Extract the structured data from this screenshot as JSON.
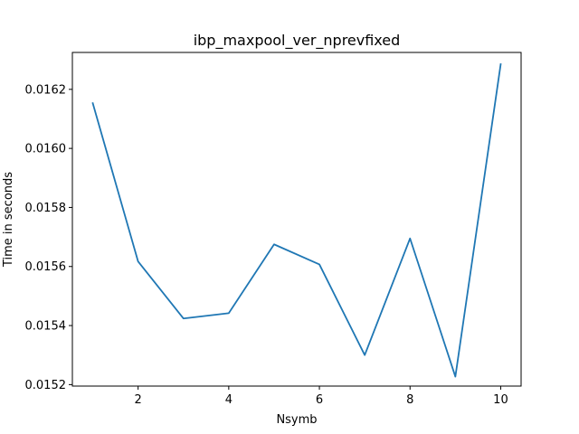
{
  "chart_data": {
    "type": "line",
    "title": "ibp_maxpool_ver_nprevfixed",
    "xlabel": "Nsymb",
    "ylabel": "Time in seconds",
    "xlim": [
      0.55,
      10.45
    ],
    "ylim": [
      0.015195,
      0.016325
    ],
    "xticks": [
      2,
      4,
      6,
      8,
      10
    ],
    "xtick_labels": [
      "2",
      "4",
      "6",
      "8",
      "10"
    ],
    "yticks": [
      0.0152,
      0.0154,
      0.0156,
      0.0158,
      0.016,
      0.0162
    ],
    "ytick_labels": [
      "0.0152",
      "0.0154",
      "0.0156",
      "0.0158",
      "0.0160",
      "0.0162"
    ],
    "grid": false,
    "legend": "none",
    "series": [
      {
        "color": "#1f77b4",
        "x": [
          1,
          2,
          3,
          4,
          5,
          6,
          7,
          8,
          9,
          10
        ],
        "y": [
          0.016153,
          0.015617,
          0.015424,
          0.015442,
          0.015675,
          0.015607,
          0.0153,
          0.015695,
          0.015227,
          0.016285
        ]
      }
    ]
  }
}
